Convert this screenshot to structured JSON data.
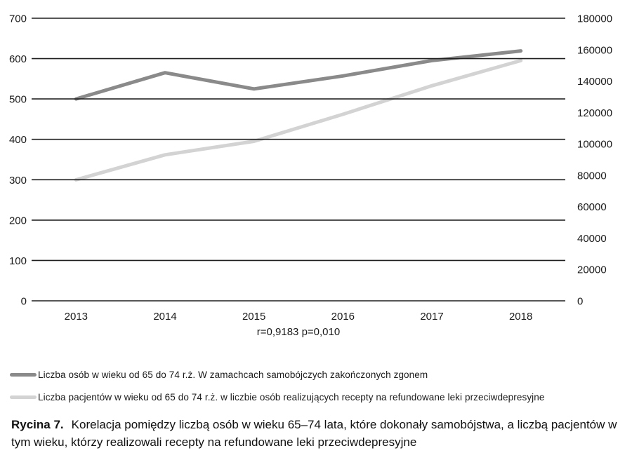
{
  "chart_data": {
    "type": "line",
    "title": "",
    "xlabel": "",
    "ylabel": "",
    "categories": [
      "2013",
      "2014",
      "2015",
      "2016",
      "2017",
      "2018"
    ],
    "left_axis": {
      "min": 0,
      "max": 700,
      "step": 100,
      "tick_labels": [
        "0",
        "100",
        "200",
        "300",
        "400",
        "500",
        "600",
        "700"
      ]
    },
    "right_axis": {
      "min": 0,
      "max": 180000,
      "step": 20000,
      "tick_labels": [
        "0",
        "20000",
        "40000",
        "60000",
        "80000",
        "100000",
        "120000",
        "140000",
        "160000",
        "180000"
      ]
    },
    "grid": true,
    "legend_position": "bottom-left",
    "annotation": "r=0,9183 p=0,010",
    "series": [
      {
        "name": "Liczba osób w wieku od 65 do 74 r.ż. W zamachcach samobójczych zakończonych zgonem",
        "axis": "left",
        "color": "#8a8a8a",
        "values": [
          500,
          565,
          525,
          557,
          595,
          619
        ]
      },
      {
        "name": "Liczba pacjentów w wieku od 65 do 74 r.ż.  w liczbie osób realizujących recepty na refundowane leki przeciwdepresyjne",
        "axis": "right",
        "color": "#d3d3d3",
        "values": [
          77100,
          93000,
          101600,
          118800,
          137000,
          153000
        ]
      }
    ]
  },
  "colors": {
    "grid_line": "#1f1f1f",
    "axis_text": "#1a1a1a",
    "series_dark": "#8a8a8a",
    "series_light": "#d3d3d3"
  },
  "caption": {
    "label": "Rycina 7.",
    "text": "Korelacja pomiędzy liczbą osób w wieku 65–74 lata, które dokonały samobójstwa, a liczbą pacjentów w tym wieku, którzy realizowali recepty na refundowane leki przeciwdepresyjne"
  }
}
